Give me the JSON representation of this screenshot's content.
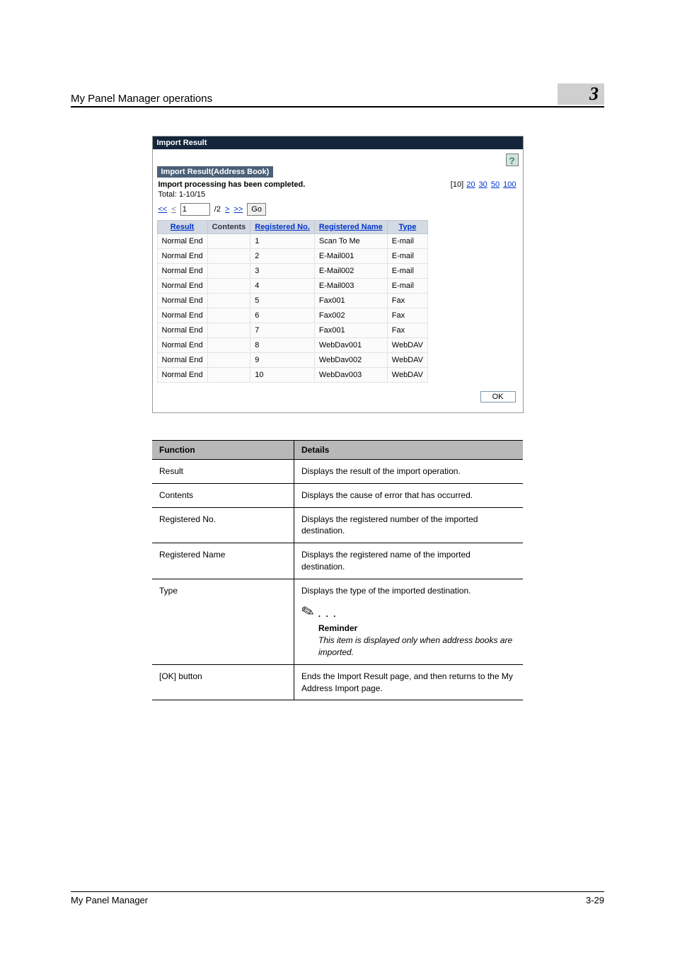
{
  "header": {
    "title": "My Panel Manager operations",
    "chapter": "3"
  },
  "import_panel": {
    "title": "Import Result",
    "help_glyph": "?",
    "subheader": "Import Result(Address Book)",
    "status": "Import processing has been completed.",
    "total": "Total:   1-10/15",
    "page_sizes": {
      "current": "[10]",
      "p20": "20",
      "p30": "30",
      "p50": "50",
      "p100": "100"
    },
    "nav": {
      "first": "<<",
      "prev": "<",
      "page_input": "1",
      "of": "/2",
      "next": ">",
      "last": ">>",
      "go": "Go"
    },
    "columns": {
      "result": "Result",
      "contents": "Contents",
      "regno": "Registered No.",
      "regname": "Registered Name",
      "type": "Type"
    },
    "rows": [
      {
        "result": "Normal End",
        "contents": "",
        "regno": "1",
        "regname": "Scan To Me",
        "type": "E-mail"
      },
      {
        "result": "Normal End",
        "contents": "",
        "regno": "2",
        "regname": "E-Mail001",
        "type": "E-mail"
      },
      {
        "result": "Normal End",
        "contents": "",
        "regno": "3",
        "regname": "E-Mail002",
        "type": "E-mail"
      },
      {
        "result": "Normal End",
        "contents": "",
        "regno": "4",
        "regname": "E-Mail003",
        "type": "E-mail"
      },
      {
        "result": "Normal End",
        "contents": "",
        "regno": "5",
        "regname": "Fax001",
        "type": "Fax"
      },
      {
        "result": "Normal End",
        "contents": "",
        "regno": "6",
        "regname": "Fax002",
        "type": "Fax"
      },
      {
        "result": "Normal End",
        "contents": "",
        "regno": "7",
        "regname": "Fax001",
        "type": "Fax"
      },
      {
        "result": "Normal End",
        "contents": "",
        "regno": "8",
        "regname": "WebDav001",
        "type": "WebDAV"
      },
      {
        "result": "Normal End",
        "contents": "",
        "regno": "9",
        "regname": "WebDav002",
        "type": "WebDAV"
      },
      {
        "result": "Normal End",
        "contents": "",
        "regno": "10",
        "regname": "WebDav003",
        "type": "WebDAV"
      }
    ],
    "ok_label": "OK"
  },
  "func_table": {
    "head_function": "Function",
    "head_details": "Details",
    "rows": [
      {
        "f": "Result",
        "d": "Displays the result of the import operation."
      },
      {
        "f": "Contents",
        "d": "Displays the cause of error that has occurred."
      },
      {
        "f": "Registered No.",
        "d": "Displays the registered number of the imported destination."
      },
      {
        "f": "Registered Name",
        "d": "Displays the registered name of the imported destination."
      }
    ],
    "type_row": {
      "f": "Type",
      "lead": "Displays the type of the imported destination.",
      "reminder_label": "Reminder",
      "reminder_text": "This item is displayed only when address books are imported."
    },
    "ok_row": {
      "f": "[OK] button",
      "d": "Ends the Import Result page, and then returns to the My Address Import page."
    }
  },
  "footer": {
    "left": "My Panel Manager",
    "right": "3-29"
  },
  "colors": {
    "dark_navy": "#14253c",
    "sub_navy": "#4b6178",
    "th_bg": "#d3dae3",
    "th_link": "#0033cc",
    "chapter_bg": "#cfcfcf",
    "func_th_bg": "#b8b8b8",
    "help_bg": "#cfe5da"
  }
}
